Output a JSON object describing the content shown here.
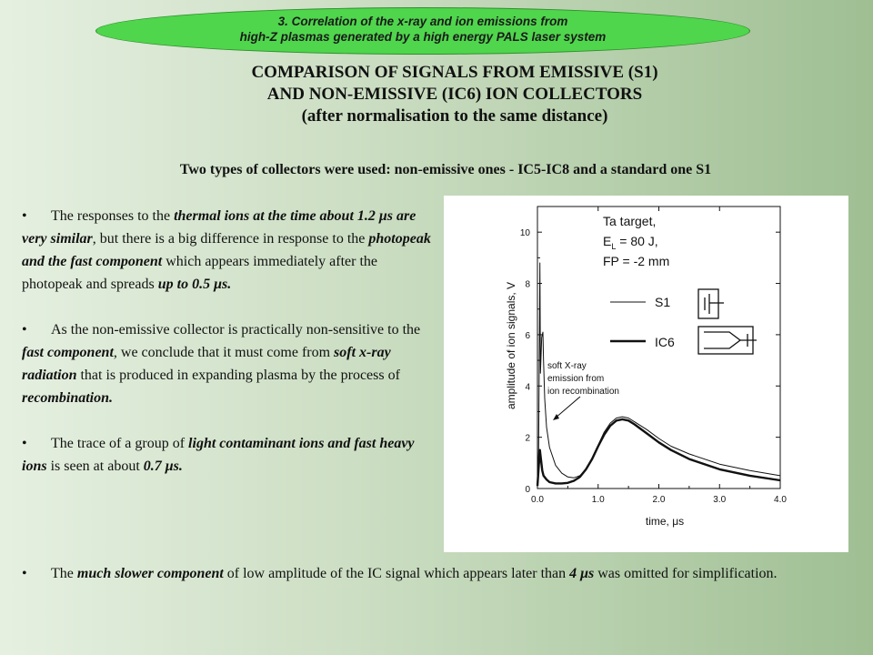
{
  "banner": {
    "line1": "3. Correlation of the x-ray and ion emissions from",
    "line2": "high-Z plasmas generated by a high energy PALS laser system"
  },
  "title": {
    "line1": "COMPARISON OF SIGNALS FROM EMISSIVE (S1)",
    "line2": "AND NON-EMISSIVE (IC6) ION COLLECTORS",
    "line3": "(after normalisation to the same distance)"
  },
  "subtitle": "Two types of collectors were used: non-emissive ones - IC5-IC8 and a standard one S1",
  "bullets": [
    {
      "marker": "•",
      "parts": [
        "The responses to the ",
        "thermal ions at the time about 1.2 μs are very similar",
        ", but there is a big difference in response to the ",
        "photopeak and the fast component",
        " which appears immediately after the photopeak and spreads ",
        "up to 0.5 μs."
      ]
    },
    {
      "marker": "•",
      "parts": [
        "As the non-emissive collector is practically non-sensitive to the ",
        "fast component",
        ", we conclude that it must come from ",
        "soft x-ray radiation",
        " that is produced in expanding plasma by the process of ",
        "recombination."
      ]
    },
    {
      "marker": "•",
      "parts": [
        "The trace of a group of ",
        "light contaminant ions and fast heavy ions",
        " is seen at about ",
        "0.7 μs."
      ]
    }
  ],
  "bottom": {
    "marker": "•",
    "parts": [
      "The ",
      "much slower component",
      " of low amplitude of the IC signal which appears later than ",
      "4 μs",
      " was omitted for simplification."
    ]
  },
  "chart_data": {
    "type": "line",
    "xlabel": "time, μs",
    "ylabel": "amplitude of ion signals, V",
    "xlim": [
      0,
      4
    ],
    "ylim": [
      0,
      11
    ],
    "xticks": [
      "0.0",
      "1.0",
      "2.0",
      "3.0",
      "4.0"
    ],
    "yticks": [
      "0",
      "2",
      "4",
      "6",
      "8",
      "10"
    ],
    "annotation_lines": [
      "soft X-ray",
      "emission from",
      "ion recombination"
    ],
    "info": {
      "line1": "Ta target,",
      "el_prefix": "E",
      "el_sub": "L",
      "el_rest": " = 80 J,",
      "line3": "FP = -2 mm"
    },
    "series": [
      {
        "name": "S1",
        "x": [
          0.0,
          0.02,
          0.04,
          0.05,
          0.07,
          0.09,
          0.1,
          0.12,
          0.15,
          0.2,
          0.3,
          0.4,
          0.5,
          0.6,
          0.7,
          0.8,
          0.9,
          1.0,
          1.1,
          1.2,
          1.3,
          1.4,
          1.5,
          1.6,
          1.8,
          2.0,
          2.2,
          2.5,
          3.0,
          3.5,
          4.0
        ],
        "y": [
          0.2,
          1.5,
          8.8,
          4.5,
          5.9,
          6.1,
          5.0,
          3.5,
          2.4,
          1.6,
          0.9,
          0.6,
          0.45,
          0.42,
          0.5,
          0.75,
          1.2,
          1.7,
          2.2,
          2.55,
          2.75,
          2.8,
          2.75,
          2.6,
          2.3,
          1.95,
          1.65,
          1.35,
          0.95,
          0.7,
          0.5
        ]
      },
      {
        "name": "IC6",
        "x": [
          0.0,
          0.02,
          0.04,
          0.06,
          0.08,
          0.1,
          0.15,
          0.2,
          0.3,
          0.4,
          0.5,
          0.6,
          0.7,
          0.8,
          0.9,
          1.0,
          1.1,
          1.2,
          1.3,
          1.4,
          1.5,
          1.6,
          1.8,
          2.0,
          2.2,
          2.5,
          3.0,
          3.5,
          4.0
        ],
        "y": [
          0.1,
          0.8,
          1.5,
          1.1,
          0.7,
          0.5,
          0.35,
          0.25,
          0.2,
          0.2,
          0.22,
          0.3,
          0.45,
          0.75,
          1.15,
          1.65,
          2.1,
          2.45,
          2.65,
          2.7,
          2.65,
          2.5,
          2.15,
          1.8,
          1.5,
          1.15,
          0.75,
          0.5,
          0.32
        ]
      }
    ]
  }
}
